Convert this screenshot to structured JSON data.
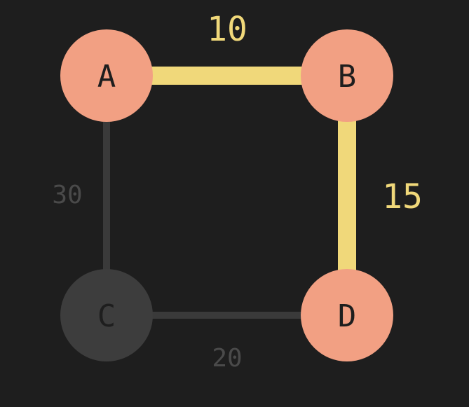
{
  "graph": {
    "nodes": [
      {
        "id": "A",
        "label": "A",
        "state": "highlighted"
      },
      {
        "id": "B",
        "label": "B",
        "state": "highlighted"
      },
      {
        "id": "C",
        "label": "C",
        "state": "inactive"
      },
      {
        "id": "D",
        "label": "D",
        "state": "highlighted"
      }
    ],
    "edges": [
      {
        "from": "A",
        "to": "B",
        "weight": "10",
        "state": "highlighted"
      },
      {
        "from": "B",
        "to": "D",
        "weight": "15",
        "state": "highlighted"
      },
      {
        "from": "A",
        "to": "C",
        "weight": "30",
        "state": "inactive"
      },
      {
        "from": "C",
        "to": "D",
        "weight": "20",
        "state": "inactive"
      }
    ]
  },
  "colors": {
    "background": "#1e1e1e",
    "node_highlighted": "#f2a083",
    "node_inactive": "#3d3d3d",
    "node_text": "#1e1e1e",
    "edge_highlighted": "#f0d87a",
    "edge_inactive": "#3a3a3a",
    "label_highlighted": "#f0d87a",
    "label_inactive": "#4a4a4a"
  }
}
